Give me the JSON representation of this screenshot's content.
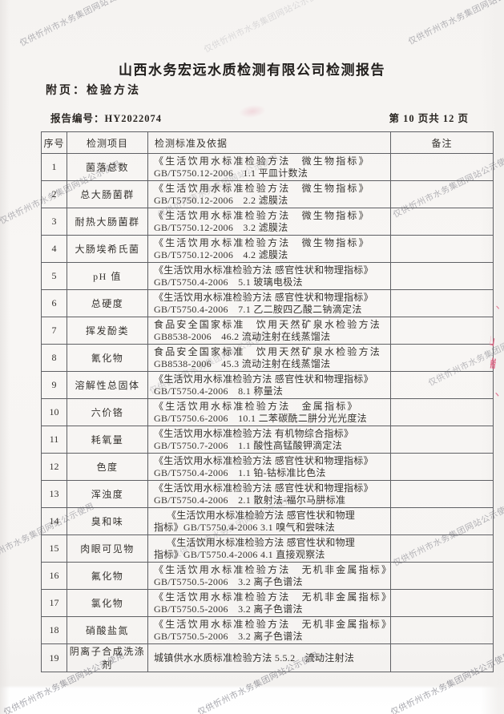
{
  "page": {
    "title": "山西水务宏远水质检测有限公司检测报告",
    "subtitle": "附页：检验方法",
    "report_no_label": "报告编号：",
    "report_no": "HY2022074",
    "page_info": "第 10 页共 12 页"
  },
  "watermark": {
    "text": "仅供忻州市水务集团网站公示使用",
    "color": "#6d6d77"
  },
  "seal": {
    "color": "#de5f80",
    "fragments": [
      "丶",
      "纟",
      "山",
      "端",
      "丶"
    ]
  },
  "table": {
    "headers": [
      "序号",
      "检测项目",
      "检测标准及依据",
      "备注"
    ],
    "rows": [
      {
        "no": "1",
        "item": "菌落总数",
        "std": [
          "《生活饮用水标准检验方法　微生物指标》",
          "GB/T5750.12-2006　1.1 平皿计数法"
        ],
        "remark": "",
        "style": "wide"
      },
      {
        "no": "2",
        "item": "总大肠菌群",
        "std": [
          "《生活饮用水标准检验方法　微生物指标》",
          "GB/T5750.12-2006　2.2 滤膜法"
        ],
        "remark": "",
        "style": "wide"
      },
      {
        "no": "3",
        "item": "耐热大肠菌群",
        "std": [
          "《生活饮用水标准检验方法　微生物指标》",
          "GB/T5750.12-2006　3.2 滤膜法"
        ],
        "remark": "",
        "style": "wide"
      },
      {
        "no": "4",
        "item": "大肠埃希氏菌",
        "std": [
          "《生活饮用水标准检验方法　微生物指标》",
          "GB/T5750.12-2006　4.2 滤膜法"
        ],
        "remark": "",
        "style": "wide"
      },
      {
        "no": "5",
        "item": "pH 值",
        "std": [
          "《生活饮用水标准检验方法 感官性状和物理指标》",
          "GB/T5750.4-2006　5.1 玻璃电极法"
        ],
        "remark": "",
        "style": ""
      },
      {
        "no": "6",
        "item": "总硬度",
        "std": [
          "《生活饮用水标准检验方法 感官性状和物理指标》",
          "GB/T5750.4-2006　7.1 乙二胺四乙酸二钠滴定法"
        ],
        "remark": "",
        "style": ""
      },
      {
        "no": "7",
        "item": "挥发酚类",
        "std": [
          "食品安全国家标准　饮用天然矿泉水检验方法",
          "GB8538-2006　46.2 流动注射在线蒸馏法"
        ],
        "remark": "",
        "style": "wide"
      },
      {
        "no": "8",
        "item": "氰化物",
        "std": [
          "食品安全国家标准　饮用天然矿泉水检验方法",
          "GB8538-2006　45.3 流动注射在线蒸馏法"
        ],
        "remark": "",
        "style": "wide"
      },
      {
        "no": "9",
        "item": "溶解性总固体",
        "std": [
          "《生活饮用水标准检验方法 感官性状和物理指标》",
          "GB/T5750.4-2006　8.1 称量法"
        ],
        "remark": "",
        "style": ""
      },
      {
        "no": "10",
        "item": "六价铬",
        "std": [
          "《生活饮用水标准检验方法　金属指标》",
          "GB/T5750.6-2006　10.1 二苯碳酰二肼分光光度法"
        ],
        "remark": "",
        "style": "wide"
      },
      {
        "no": "11",
        "item": "耗氧量",
        "std": [
          "《生活饮用水标准检验方法 有机物综合指标》",
          "GB/T5750.7-2006　1.1 酸性高锰酸钾滴定法"
        ],
        "remark": "",
        "style": ""
      },
      {
        "no": "12",
        "item": "色度",
        "std": [
          "《生活饮用水标准检验方法 感官性状和物理指标》",
          "GB/T5750.4-2006　1.1 铂-钴标准比色法"
        ],
        "remark": "",
        "style": ""
      },
      {
        "no": "13",
        "item": "浑浊度",
        "std": [
          "《生活饮用水标准检验方法 感官性状和物理指标》",
          "GB/T5750.4-2006　2.1 散射法-福尔马肼标准"
        ],
        "remark": "",
        "style": ""
      },
      {
        "no": "14",
        "item": "臭和味",
        "std": [
          "《生活饮用水标准检验方法 感官性状和物理",
          "指标》GB/T5750.4-2006 3.1 嗅气和尝味法"
        ],
        "remark": "",
        "style": "indent"
      },
      {
        "no": "15",
        "item": "肉眼可见物",
        "std": [
          "《生活饮用水标准检验方法 感官性状和物理",
          "指标》GB/T5750.4-2006 4.1 直接观察法"
        ],
        "remark": "",
        "style": "indent"
      },
      {
        "no": "16",
        "item": "氟化物",
        "std": [
          "《生活饮用水标准检验方法　无机非金属指标》",
          "GB/T5750.5-2006　3.2 离子色谱法"
        ],
        "remark": "",
        "style": "wide"
      },
      {
        "no": "17",
        "item": "氯化物",
        "std": [
          "《生活饮用水标准检验方法　无机非金属指标》",
          "GB/T5750.5-2006　3.2 离子色谱法"
        ],
        "remark": "",
        "style": "wide"
      },
      {
        "no": "18",
        "item": "硝酸盐氮",
        "std": [
          "《生活饮用水标准检验方法　无机非金属指标》",
          "GB/T5750.5-2006　3.2 离子色谱法"
        ],
        "remark": "",
        "style": "wide"
      },
      {
        "no": "19",
        "item": "阴离子合成洗涤剂",
        "std": [
          "城镇供水水质标准检验方法 5.5.2　流动注射法"
        ],
        "remark": "",
        "style": ""
      }
    ]
  }
}
